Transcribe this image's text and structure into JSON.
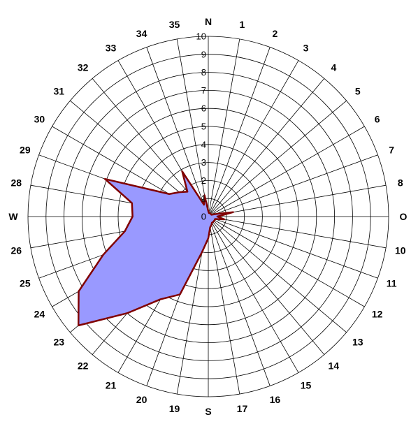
{
  "chart_data": {
    "type": "radar",
    "title": "",
    "direction_labels": [
      "N",
      "1",
      "2",
      "3",
      "4",
      "5",
      "6",
      "7",
      "8",
      "O",
      "10",
      "11",
      "12",
      "13",
      "14",
      "15",
      "16",
      "17",
      "S",
      "19",
      "20",
      "21",
      "22",
      "23",
      "24",
      "25",
      "26",
      "W",
      "28",
      "29",
      "30",
      "31",
      "32",
      "33",
      "34",
      "35"
    ],
    "radial_ticks": [
      "0",
      "1",
      "2",
      "3",
      "4",
      "5",
      "6",
      "7",
      "8",
      "9",
      "10"
    ],
    "rlim": [
      0,
      10
    ],
    "grid": true,
    "legend": "none",
    "series": [
      {
        "values": [
          0.3,
          0.2,
          0.2,
          0.2,
          0.2,
          0.2,
          0.2,
          0.4,
          1.4,
          0.5,
          0.9,
          0.4,
          0.4,
          0.4,
          0.4,
          0.4,
          0.5,
          0.6,
          1.2,
          2.0,
          4.6,
          5.3,
          7.0,
          9.4,
          8.3,
          6.2,
          4.7,
          4.2,
          4.3,
          6.1,
          2.5,
          2.1,
          1.8,
          2.9,
          0.7,
          1.2
        ],
        "fill": "#9999ff",
        "line": "#800000"
      }
    ]
  }
}
